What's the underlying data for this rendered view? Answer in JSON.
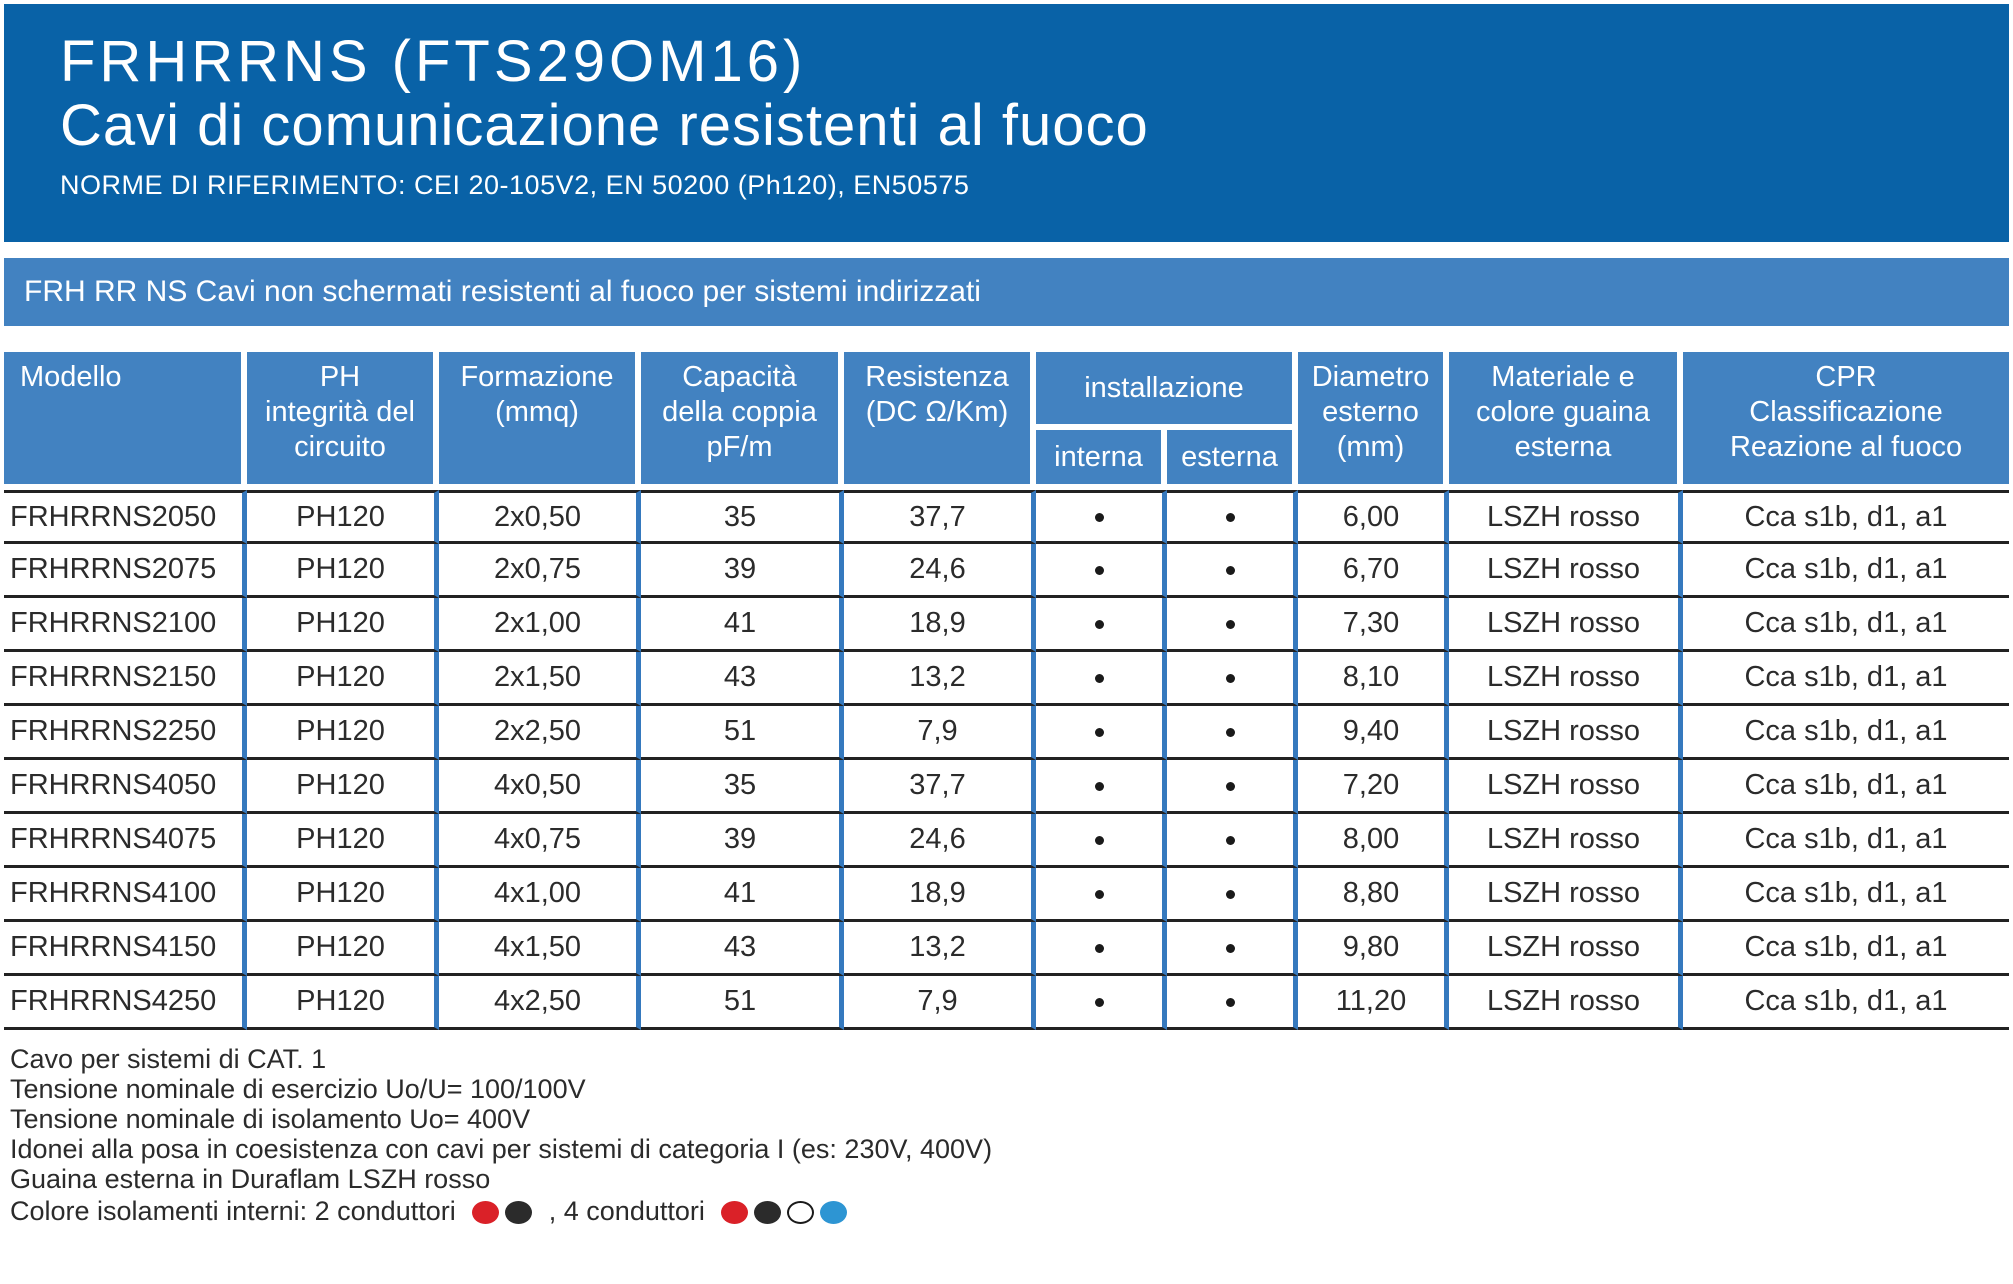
{
  "banner": {
    "title": "FRHRRNS (FTS29OM16)",
    "subtitle": "Cavi di comunicazione resistenti al fuoco",
    "norms": "NORME DI RIFERIMENTO: CEI 20-105V2, EN 50200 (Ph120), EN50575"
  },
  "section_bar": {
    "label": "FRH RR NS Cavi non schermati resistenti al fuoco per sistemi indirizzati"
  },
  "colors": {
    "banner_blue": "#0962a7",
    "bar_blue": "#4282c1",
    "divider_blue": "#3579be",
    "row_line_dark": "#222222"
  },
  "table": {
    "headers": {
      "modello": "Modello",
      "ph": "PH\nintegrità del\ncircuito",
      "formazione": "Formazione\n(mmq)",
      "capacita": "Capacità\ndella coppia\npF/m",
      "resistenza": "Resistenza\n(DC Ω/Km)",
      "installazione": "installazione",
      "interna": "interna",
      "esterna": "esterna",
      "diametro": "Diametro\nesterno\n(mm)",
      "materiale": "Materiale e\ncolore guaina\nesterna",
      "cpr": "CPR\nClassificazione\nReazione al fuoco"
    },
    "rows": [
      {
        "modello": "FRHRRNS2050",
        "ph": "PH120",
        "formazione": "2x0,50",
        "capacita": "35",
        "resistenza": "37,7",
        "interna": true,
        "esterna": true,
        "diametro": "6,00",
        "materiale": "LSZH rosso",
        "cpr": "Cca s1b, d1, a1"
      },
      {
        "modello": "FRHRRNS2075",
        "ph": "PH120",
        "formazione": "2x0,75",
        "capacita": "39",
        "resistenza": "24,6",
        "interna": true,
        "esterna": true,
        "diametro": "6,70",
        "materiale": "LSZH rosso",
        "cpr": "Cca s1b, d1, a1"
      },
      {
        "modello": "FRHRRNS2100",
        "ph": "PH120",
        "formazione": "2x1,00",
        "capacita": "41",
        "resistenza": "18,9",
        "interna": true,
        "esterna": true,
        "diametro": "7,30",
        "materiale": "LSZH rosso",
        "cpr": "Cca s1b, d1, a1"
      },
      {
        "modello": "FRHRRNS2150",
        "ph": "PH120",
        "formazione": "2x1,50",
        "capacita": "43",
        "resistenza": "13,2",
        "interna": true,
        "esterna": true,
        "diametro": "8,10",
        "materiale": "LSZH rosso",
        "cpr": "Cca s1b, d1, a1"
      },
      {
        "modello": "FRHRRNS2250",
        "ph": "PH120",
        "formazione": "2x2,50",
        "capacita": "51",
        "resistenza": "7,9",
        "interna": true,
        "esterna": true,
        "diametro": "9,40",
        "materiale": "LSZH rosso",
        "cpr": "Cca s1b, d1, a1"
      },
      {
        "modello": "FRHRRNS4050",
        "ph": "PH120",
        "formazione": "4x0,50",
        "capacita": "35",
        "resistenza": "37,7",
        "interna": true,
        "esterna": true,
        "diametro": "7,20",
        "materiale": "LSZH rosso",
        "cpr": "Cca s1b, d1, a1"
      },
      {
        "modello": "FRHRRNS4075",
        "ph": "PH120",
        "formazione": "4x0,75",
        "capacita": "39",
        "resistenza": "24,6",
        "interna": true,
        "esterna": true,
        "diametro": "8,00",
        "materiale": "LSZH rosso",
        "cpr": "Cca s1b, d1, a1"
      },
      {
        "modello": "FRHRRNS4100",
        "ph": "PH120",
        "formazione": "4x1,00",
        "capacita": "41",
        "resistenza": "18,9",
        "interna": true,
        "esterna": true,
        "diametro": "8,80",
        "materiale": "LSZH rosso",
        "cpr": "Cca s1b, d1, a1"
      },
      {
        "modello": "FRHRRNS4150",
        "ph": "PH120",
        "formazione": "4x1,50",
        "capacita": "43",
        "resistenza": "13,2",
        "interna": true,
        "esterna": true,
        "diametro": "9,80",
        "materiale": "LSZH rosso",
        "cpr": "Cca s1b, d1, a1"
      },
      {
        "modello": "FRHRRNS4250",
        "ph": "PH120",
        "formazione": "4x2,50",
        "capacita": "51",
        "resistenza": "7,9",
        "interna": true,
        "esterna": true,
        "diametro": "11,20",
        "materiale": "LSZH rosso",
        "cpr": "Cca s1b, d1, a1"
      }
    ]
  },
  "notes": [
    "Cavo per sistemi di CAT. 1",
    "Tensione nominale di esercizio Uo/U= 100/100V",
    "Tensione nominale di isolamento Uo= 400V",
    "Idonei alla posa in coesistenza con cavi per sistemi di categoria I (es: 230V, 400V)",
    "Guaina esterna in Duraflam LSZH rosso"
  ],
  "legend": {
    "prefix": "Colore isolamenti interni: 2 conduttori",
    "separator": ", 4 conduttori",
    "two_conductor_colors": [
      {
        "name": "rosso",
        "fill": "#da2128"
      },
      {
        "name": "nero",
        "fill": "#2b2b2b"
      }
    ],
    "four_conductor_colors": [
      {
        "name": "rosso",
        "fill": "#da2128"
      },
      {
        "name": "nero",
        "fill": "#2b2b2b"
      },
      {
        "name": "bianco",
        "fill": "#ffffff",
        "border": "#1a1a1a"
      },
      {
        "name": "blu",
        "fill": "#2d95d3"
      }
    ]
  }
}
